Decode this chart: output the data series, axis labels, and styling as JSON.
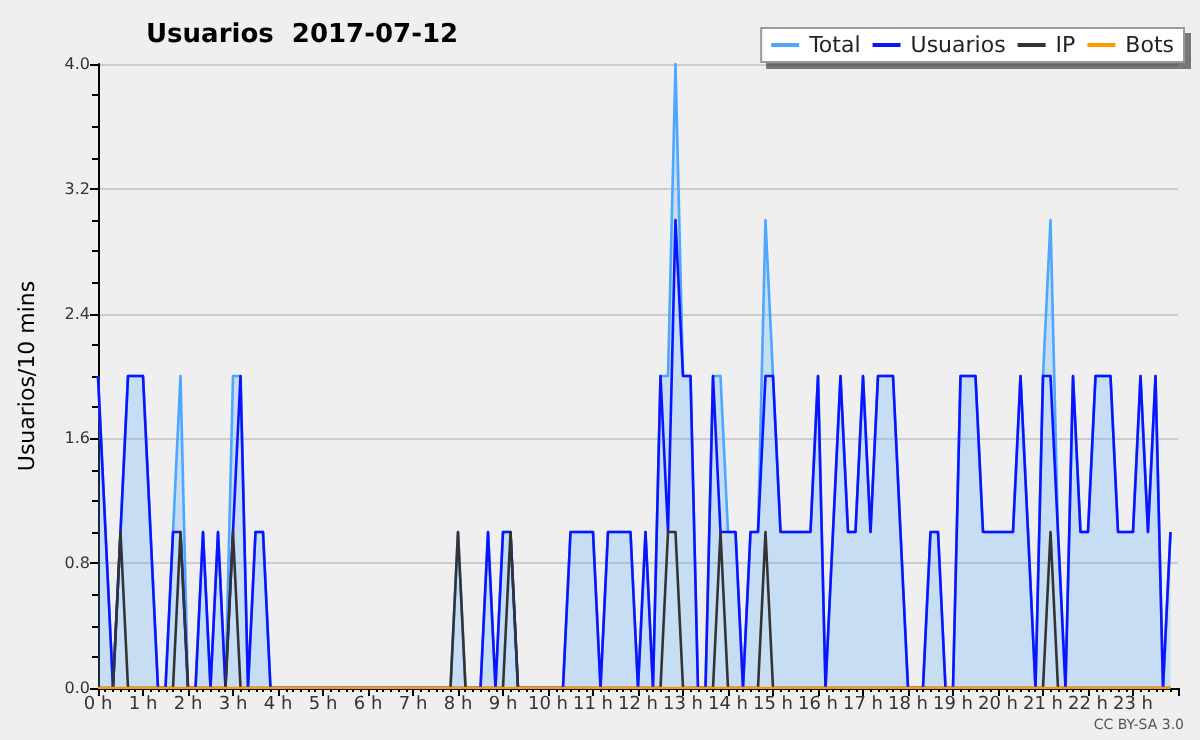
{
  "chart_data": {
    "type": "line",
    "title": "Usuarios  2017-07-12",
    "ylabel": "Usuarios/10 mins",
    "annotations": [
      "CC BY-SA 3.0"
    ],
    "x": [
      0,
      0.167,
      0.333,
      0.5,
      0.667,
      0.833,
      1,
      1.167,
      1.333,
      1.5,
      1.667,
      1.833,
      2,
      2.167,
      2.333,
      2.5,
      2.667,
      2.833,
      3,
      3.167,
      3.333,
      3.5,
      3.667,
      3.833,
      4,
      4.167,
      4.333,
      4.5,
      4.667,
      4.833,
      5,
      5.167,
      5.333,
      5.5,
      5.667,
      5.833,
      6,
      6.167,
      6.333,
      6.5,
      6.667,
      6.833,
      7,
      7.167,
      7.333,
      7.5,
      7.667,
      7.833,
      8,
      8.167,
      8.333,
      8.5,
      8.667,
      8.833,
      9,
      9.167,
      9.333,
      9.5,
      9.667,
      9.833,
      10,
      10.167,
      10.333,
      10.5,
      10.667,
      10.833,
      11,
      11.167,
      11.333,
      11.5,
      11.667,
      11.833,
      12,
      12.167,
      12.333,
      12.5,
      12.667,
      12.833,
      13,
      13.167,
      13.333,
      13.5,
      13.667,
      13.833,
      14,
      14.167,
      14.333,
      14.5,
      14.667,
      14.833,
      15,
      15.167,
      15.333,
      15.5,
      15.667,
      15.833,
      16,
      16.167,
      16.333,
      16.5,
      16.667,
      16.833,
      17,
      17.167,
      17.333,
      17.5,
      17.667,
      17.833,
      18,
      18.167,
      18.333,
      18.5,
      18.667,
      18.833,
      19,
      19.167,
      19.333,
      19.5,
      19.667,
      19.833,
      20,
      20.167,
      20.333,
      20.5,
      20.667,
      20.833,
      21,
      21.167,
      21.333,
      21.5,
      21.667,
      21.833,
      22,
      22.167,
      22.333,
      22.5,
      22.667,
      22.833,
      23,
      23.167,
      23.333,
      23.5,
      23.667,
      23.833
    ],
    "series": [
      {
        "name": "Total",
        "type": "area",
        "color": "#4da6ff",
        "values": [
          2,
          1,
          0,
          1,
          2,
          2,
          2,
          1,
          0,
          0,
          1,
          2,
          0,
          0,
          1,
          0,
          1,
          0,
          2,
          2,
          0,
          1,
          1,
          0,
          0,
          0,
          0,
          0,
          0,
          0,
          0,
          0,
          0,
          0,
          0,
          0,
          0,
          0,
          0,
          0,
          0,
          0,
          0,
          0,
          0,
          0,
          0,
          0,
          1,
          0,
          0,
          0,
          1,
          0,
          1,
          1,
          0,
          0,
          0,
          0,
          0,
          0,
          0,
          1,
          1,
          1,
          1,
          0,
          1,
          1,
          1,
          1,
          0,
          1,
          0,
          2,
          2,
          4,
          2,
          2,
          0,
          0,
          2,
          2,
          1,
          1,
          0,
          1,
          1,
          3,
          2,
          1,
          1,
          1,
          1,
          1,
          2,
          0,
          1,
          2,
          1,
          1,
          2,
          1,
          2,
          2,
          2,
          1,
          0,
          0,
          0,
          1,
          1,
          0,
          0,
          2,
          2,
          2,
          1,
          1,
          1,
          1,
          1,
          2,
          1,
          0,
          2,
          3,
          1,
          0,
          2,
          1,
          1,
          2,
          2,
          2,
          1,
          1,
          1,
          2,
          1,
          2,
          0,
          1
        ]
      },
      {
        "name": "Usuarios",
        "color": "#0a14ff",
        "values": [
          2,
          1,
          0,
          1,
          2,
          2,
          2,
          1,
          0,
          0,
          1,
          1,
          0,
          0,
          1,
          0,
          1,
          0,
          1,
          2,
          0,
          1,
          1,
          0,
          0,
          0,
          0,
          0,
          0,
          0,
          0,
          0,
          0,
          0,
          0,
          0,
          0,
          0,
          0,
          0,
          0,
          0,
          0,
          0,
          0,
          0,
          0,
          0,
          0,
          0,
          0,
          0,
          1,
          0,
          1,
          1,
          0,
          0,
          0,
          0,
          0,
          0,
          0,
          1,
          1,
          1,
          1,
          0,
          1,
          1,
          1,
          1,
          0,
          1,
          0,
          2,
          1,
          3,
          2,
          2,
          0,
          0,
          2,
          1,
          1,
          1,
          0,
          1,
          1,
          2,
          2,
          1,
          1,
          1,
          1,
          1,
          2,
          0,
          1,
          2,
          1,
          1,
          2,
          1,
          2,
          2,
          2,
          1,
          0,
          0,
          0,
          1,
          1,
          0,
          0,
          2,
          2,
          2,
          1,
          1,
          1,
          1,
          1,
          2,
          1,
          0,
          2,
          2,
          1,
          0,
          2,
          1,
          1,
          2,
          2,
          2,
          1,
          1,
          1,
          2,
          1,
          2,
          0,
          1
        ]
      },
      {
        "name": "IP",
        "color": "#333333",
        "values": [
          0,
          0,
          0,
          1,
          0,
          0,
          0,
          0,
          0,
          0,
          0,
          1,
          0,
          0,
          0,
          0,
          0,
          0,
          1,
          0,
          0,
          0,
          0,
          0,
          0,
          0,
          0,
          0,
          0,
          0,
          0,
          0,
          0,
          0,
          0,
          0,
          0,
          0,
          0,
          0,
          0,
          0,
          0,
          0,
          0,
          0,
          0,
          0,
          1,
          0,
          0,
          0,
          0,
          0,
          0,
          1,
          0,
          0,
          0,
          0,
          0,
          0,
          0,
          0,
          0,
          0,
          0,
          0,
          0,
          0,
          0,
          0,
          0,
          0,
          0,
          0,
          1,
          1,
          0,
          0,
          0,
          0,
          0,
          1,
          0,
          0,
          0,
          0,
          0,
          1,
          0,
          0,
          0,
          0,
          0,
          0,
          0,
          0,
          0,
          0,
          0,
          0,
          0,
          0,
          0,
          0,
          0,
          0,
          0,
          0,
          0,
          0,
          0,
          0,
          0,
          0,
          0,
          0,
          0,
          0,
          0,
          0,
          0,
          0,
          0,
          0,
          0,
          1,
          0,
          0,
          0,
          0,
          0,
          0,
          0,
          0,
          0,
          0,
          0,
          0,
          0,
          0,
          0,
          0
        ]
      },
      {
        "name": "Bots",
        "color": "#ff9900",
        "values": [
          0,
          0,
          0,
          0,
          0,
          0,
          0,
          0,
          0,
          0,
          0,
          0,
          0,
          0,
          0,
          0,
          0,
          0,
          0,
          0,
          0,
          0,
          0,
          0,
          0,
          0,
          0,
          0,
          0,
          0,
          0,
          0,
          0,
          0,
          0,
          0,
          0,
          0,
          0,
          0,
          0,
          0,
          0,
          0,
          0,
          0,
          0,
          0,
          0,
          0,
          0,
          0,
          0,
          0,
          0,
          0,
          0,
          0,
          0,
          0,
          0,
          0,
          0,
          0,
          0,
          0,
          0,
          0,
          0,
          0,
          0,
          0,
          0,
          0,
          0,
          0,
          0,
          0,
          0,
          0,
          0,
          0,
          0,
          0,
          0,
          0,
          0,
          0,
          0,
          0,
          0,
          0,
          0,
          0,
          0,
          0,
          0,
          0,
          0,
          0,
          0,
          0,
          0,
          0,
          0,
          0,
          0,
          0,
          0,
          0,
          0,
          0,
          0,
          0,
          0,
          0,
          0,
          0,
          0,
          0,
          0,
          0,
          0,
          0,
          0,
          0,
          0,
          0,
          0,
          0,
          0,
          0,
          0,
          0,
          0,
          0,
          0,
          0,
          0,
          0,
          0,
          0,
          0,
          0
        ]
      }
    ],
    "xlim": [
      0,
      24
    ],
    "xticks": [
      {
        "value": 0,
        "label": "0 h"
      },
      {
        "value": 1,
        "label": "1 h"
      },
      {
        "value": 2,
        "label": "2 h"
      },
      {
        "value": 3,
        "label": "3 h"
      },
      {
        "value": 4,
        "label": "4 h"
      },
      {
        "value": 5,
        "label": "5 h"
      },
      {
        "value": 6,
        "label": "6 h"
      },
      {
        "value": 7,
        "label": "7 h"
      },
      {
        "value": 8,
        "label": "8 h"
      },
      {
        "value": 9,
        "label": "9 h"
      },
      {
        "value": 10,
        "label": "10 h"
      },
      {
        "value": 11,
        "label": "11 h"
      },
      {
        "value": 12,
        "label": "12 h"
      },
      {
        "value": 13,
        "label": "13 h"
      },
      {
        "value": 14,
        "label": "14 h"
      },
      {
        "value": 15,
        "label": "15 h"
      },
      {
        "value": 16,
        "label": "16 h"
      },
      {
        "value": 17,
        "label": "17 h"
      },
      {
        "value": 18,
        "label": "18 h"
      },
      {
        "value": 19,
        "label": "19 h"
      },
      {
        "value": 20,
        "label": "20 h"
      },
      {
        "value": 21,
        "label": "21 h"
      },
      {
        "value": 22,
        "label": "22 h"
      },
      {
        "value": 23,
        "label": "23 h"
      },
      {
        "value": 24,
        "label": null
      }
    ],
    "ylim": [
      0,
      4
    ],
    "yticks": [
      {
        "value": 0,
        "label": "0.0"
      },
      {
        "value": 0.8,
        "label": "0.8"
      },
      {
        "value": 1.6,
        "label": "1.6"
      },
      {
        "value": 2.4,
        "label": "2.4"
      },
      {
        "value": 3.2,
        "label": "3.2"
      },
      {
        "value": 4,
        "label": "4.0"
      }
    ],
    "grid": "y",
    "legend": "top right",
    "marker": "none",
    "line_style": "solid"
  }
}
